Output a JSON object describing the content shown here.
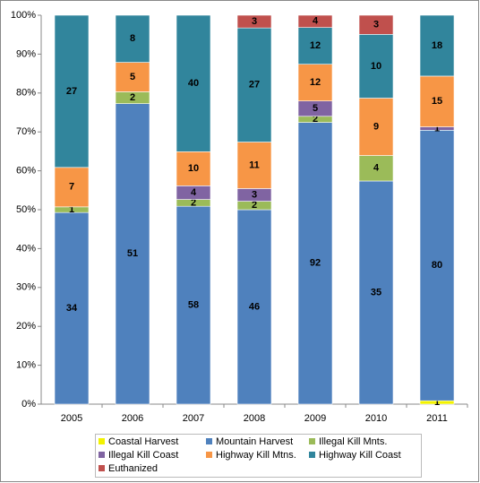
{
  "chart_data": {
    "type": "bar",
    "stacking": "percent",
    "categories": [
      "2005",
      "2006",
      "2007",
      "2008",
      "2009",
      "2010",
      "2011"
    ],
    "series": [
      {
        "name": "Coastal Harvest",
        "color": "#f2f200",
        "values": [
          null,
          null,
          null,
          null,
          null,
          null,
          1
        ]
      },
      {
        "name": "Mountain Harvest",
        "color": "#4f81bd",
        "values": [
          34,
          51,
          58,
          46,
          92,
          35,
          80
        ]
      },
      {
        "name": "Illegal Kill Mnts.",
        "color": "#9bbb59",
        "values": [
          1,
          2,
          2,
          2,
          2,
          4,
          null
        ]
      },
      {
        "name": "Illegal Kill Coast",
        "color": "#8064a2",
        "values": [
          null,
          null,
          4,
          3,
          5,
          null,
          1
        ]
      },
      {
        "name": "Highway Kill Mtns.",
        "color": "#f79646",
        "values": [
          7,
          5,
          10,
          11,
          12,
          9,
          15
        ]
      },
      {
        "name": "Highway Kill Coast",
        "color": "#31859c",
        "values": [
          27,
          8,
          40,
          27,
          12,
          10,
          18
        ]
      },
      {
        "name": "Euthanized",
        "color": "#c0504d",
        "values": [
          null,
          null,
          null,
          3,
          4,
          3,
          null
        ]
      }
    ],
    "ylim": [
      0,
      100
    ],
    "yticks": [
      {
        "value": 0,
        "label": "0%"
      },
      {
        "value": 10,
        "label": "10%"
      },
      {
        "value": 20,
        "label": "20%"
      },
      {
        "value": 30,
        "label": "30%"
      },
      {
        "value": 40,
        "label": "40%"
      },
      {
        "value": 50,
        "label": "50%"
      },
      {
        "value": 60,
        "label": "60%"
      },
      {
        "value": 70,
        "label": "70%"
      },
      {
        "value": 80,
        "label": "80%"
      },
      {
        "value": 90,
        "label": "90%"
      },
      {
        "value": 100,
        "label": "100%"
      }
    ],
    "legend": "bottom"
  }
}
